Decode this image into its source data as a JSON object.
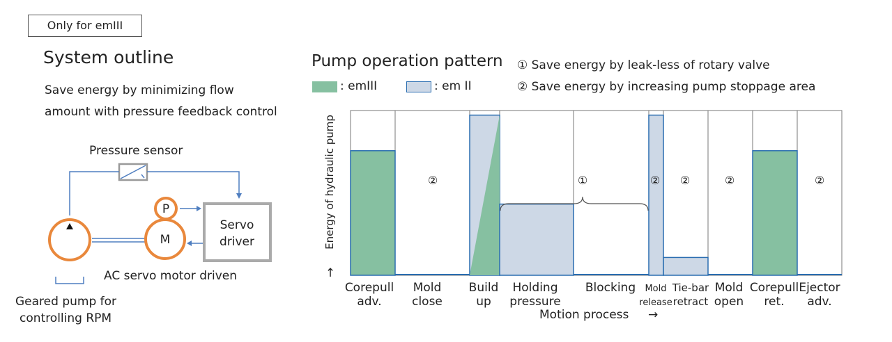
{
  "badge": "Only for emIII",
  "system": {
    "title": "System outline",
    "desc": [
      "Save energy by minimizing flow",
      "amount with pressure feedback control"
    ],
    "pressure_sensor": "Pressure sensor",
    "p_label": "P",
    "m_label": "M",
    "servo": [
      "Servo",
      "driver"
    ],
    "motor": "AC servo motor driven",
    "pump": [
      "Geared pump for",
      "controlling RPM"
    ]
  },
  "chart": {
    "title": "Pump operation pattern",
    "notes": [
      "① Save energy by leak-less of rotary valve",
      "② Save energy by increasing pump stoppage area"
    ],
    "legend": [
      {
        "label": ": emIII",
        "color": "#86c0a1"
      },
      {
        "label": ": em II",
        "color": "#cdd8e6"
      }
    ],
    "ylabel": "Energy of hydraulic pump",
    "yarrow": "↑",
    "xlabel": "Motion process",
    "xarrow": "→",
    "markers": {
      "one": "①",
      "two": "②"
    }
  },
  "chart_data": {
    "type": "bar",
    "categories": [
      "Corepull adv.",
      "Mold close",
      "Build up",
      "Holding pressure",
      "Blocking",
      "Mold release",
      "Tie-bar retract",
      "Mold open",
      "Corepull ret.",
      "Ejector adv."
    ],
    "series": [
      {
        "name": "emIII",
        "values": [
          0.7,
          0.0,
          0.45,
          0.0,
          0.0,
          0.0,
          0.0,
          0.0,
          0.7,
          0.0
        ]
      },
      {
        "name": "em II",
        "values": [
          0.0,
          0.0,
          0.9,
          0.4,
          0.0,
          0.9,
          0.1,
          0.0,
          0.0,
          0.0
        ]
      }
    ],
    "annotations": [
      "①",
      "②"
    ],
    "ylim": [
      0,
      1
    ]
  }
}
